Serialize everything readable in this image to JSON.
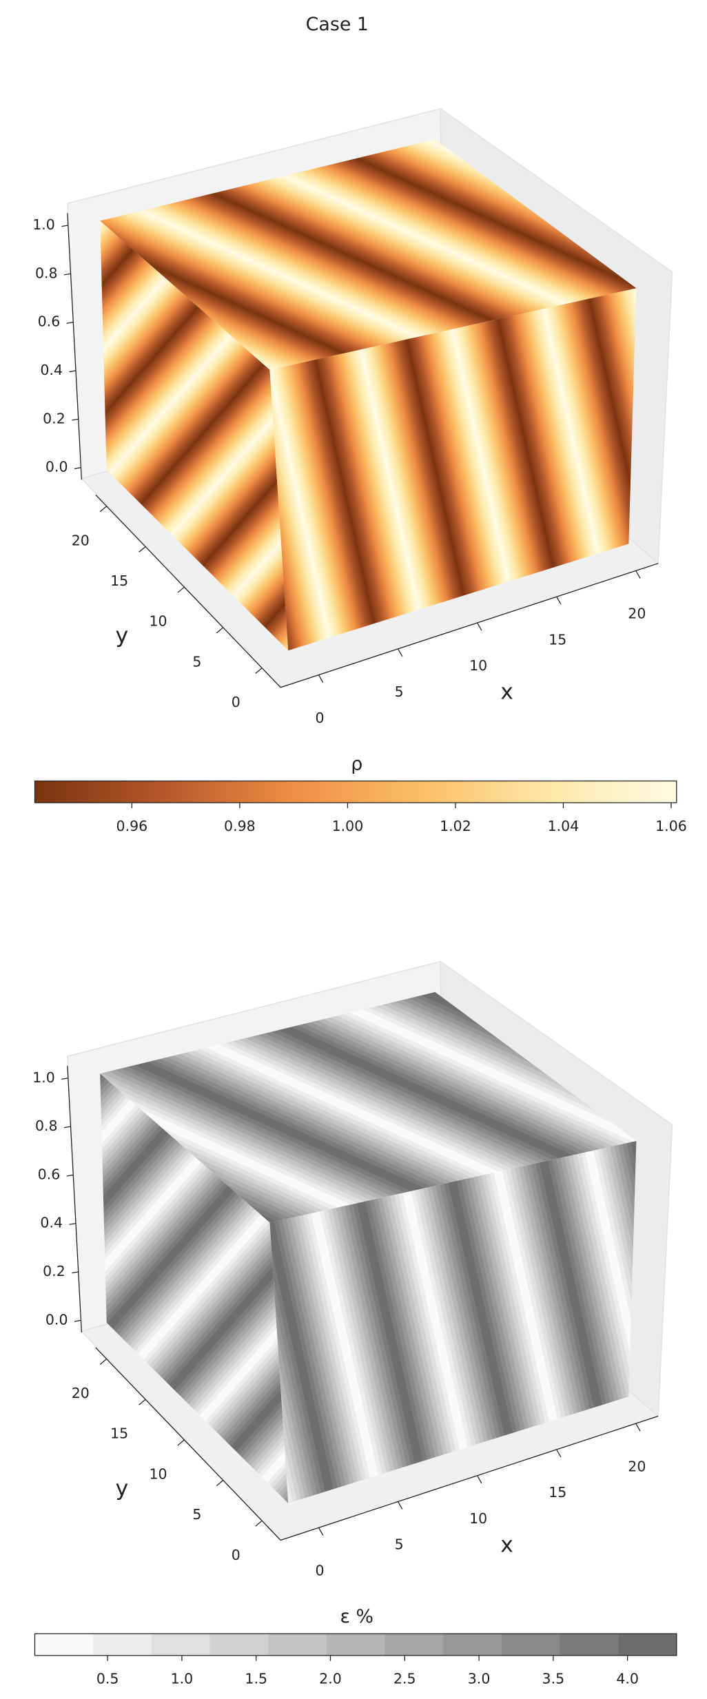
{
  "title": "Case 1",
  "chart_data": [
    {
      "type": "surface3d",
      "xlabel": "x",
      "ylabel": "y",
      "xlim": [
        -2.4,
        21.4
      ],
      "xticks": [
        0,
        5,
        10,
        15,
        20
      ],
      "ylim": [
        -2.4,
        21.4
      ],
      "yticks": [
        0,
        5,
        10,
        15,
        20
      ],
      "zlim": [
        -0.05,
        1.05
      ],
      "zticks": [
        {
          "value": 0,
          "label": "0.0"
        },
        0.2,
        0.4,
        0.6,
        0.8,
        {
          "value": 1,
          "label": "1.0"
        }
      ],
      "colorbar": {
        "label": "ρ",
        "clim": [
          0.942,
          1.061
        ],
        "ticks": [
          0.96,
          0.98,
          {
            "value": 1,
            "label": "1.00"
          },
          1.02,
          1.04,
          1.06
        ],
        "colormap": [
          "#7a3410",
          "#b4582a",
          "#ee8d44",
          "#fbbf66",
          "#fde8a8",
          "#fffbe4"
        ],
        "discrete": false
      }
    },
    {
      "type": "surface3d",
      "xlabel": "x",
      "ylabel": "y",
      "xlim": [
        -2.4,
        21.4
      ],
      "xticks": [
        0,
        5,
        10,
        15,
        20
      ],
      "ylim": [
        -2.4,
        21.4
      ],
      "yticks": [
        0,
        5,
        10,
        15,
        20
      ],
      "zlim": [
        -0.05,
        1.05
      ],
      "zticks": [
        {
          "value": 0,
          "label": "0.0"
        },
        0.2,
        0.4,
        0.6,
        0.8,
        {
          "value": 1,
          "label": "1.0"
        }
      ],
      "colorbar": {
        "label": "ε %",
        "clim": [
          0.01,
          4.33
        ],
        "ticks": [
          0.5,
          {
            "value": 1,
            "label": "1.0"
          },
          1.5,
          {
            "value": 2,
            "label": "2.0"
          },
          2.5,
          {
            "value": 3,
            "label": "3.0"
          },
          3.5,
          {
            "value": 4,
            "label": "4.0"
          }
        ],
        "colormap": [
          "#fafafa",
          "#ededed",
          "#e0e0e0",
          "#d2d2d2",
          "#c4c4c4",
          "#b5b5b5",
          "#a6a6a6",
          "#979797",
          "#898989",
          "#7b7b7b",
          "#6e6e6e"
        ],
        "discrete": true
      }
    }
  ]
}
